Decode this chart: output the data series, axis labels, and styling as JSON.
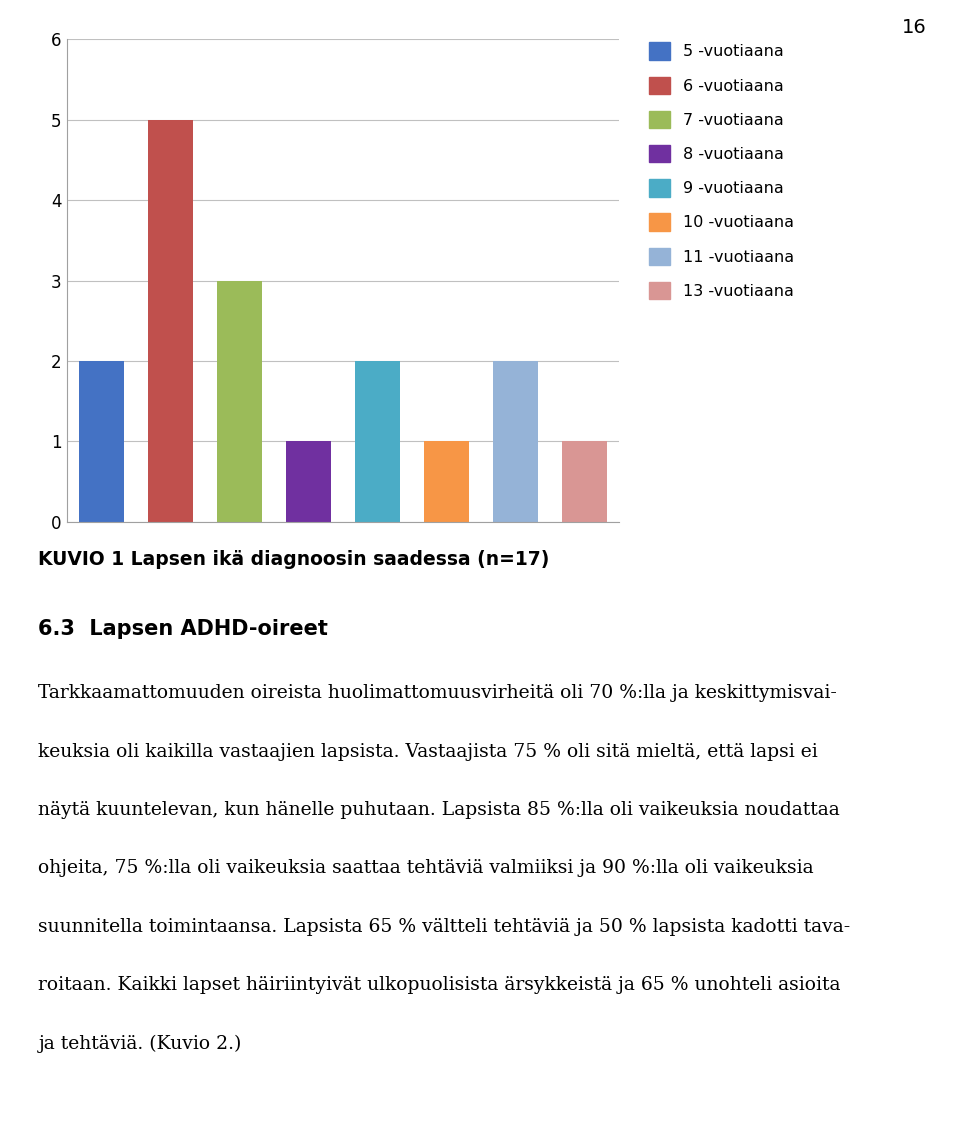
{
  "bars": [
    {
      "label": "5 -vuotiaana",
      "value": 2,
      "color": "#4472C4"
    },
    {
      "label": "6 -vuotiaana",
      "value": 5,
      "color": "#C0504D"
    },
    {
      "label": "7 -vuotiaana",
      "value": 3,
      "color": "#9BBB59"
    },
    {
      "label": "8 -vuotiaana",
      "value": 1,
      "color": "#7030A0"
    },
    {
      "label": "9 -vuotiaana",
      "value": 2,
      "color": "#4BACC6"
    },
    {
      "label": "10 -vuotiaana",
      "value": 1,
      "color": "#F79646"
    },
    {
      "label": "11 -vuotiaana",
      "value": 2,
      "color": "#95B3D7"
    },
    {
      "label": "13 -vuotiaana",
      "value": 1,
      "color": "#D99694"
    }
  ],
  "ylim": [
    0,
    6
  ],
  "yticks": [
    0,
    1,
    2,
    3,
    4,
    5,
    6
  ],
  "figure_number": "16",
  "chart_caption": "KUVIO 1 Lapsen ikä diagnoosin saadessa (n=17)",
  "section_heading": "6.3  Lapsen ADHD-oireet",
  "body_lines": [
    "Tarkkaamattomuuden oireista huolimattomuusvirheitä oli 70 %:lla ja keskittymisvai-",
    "keuksia oli kaikilla vastaajien lapsista. Vastaajista 75 % oli sitä mieltä, että lapsi ei",
    "näytä kuuntelevan, kun hänelle puhutaan. Lapsista 85 %:lla oli vaikeuksia noudattaa",
    "ohjeita, 75 %:lla oli vaikeuksia saattaa tehtäviä valmiiksi ja 90 %:lla oli vaikeuksia",
    "suunnitella toimintaansa. Lapsista 65 % vältteli tehtäviä ja 50 % lapsista kadotti tava-",
    "roitaan. Kaikki lapset häiriintyivät ulkopuolisista ärsykkeistä ja 65 % unohteli asioita",
    "ja tehtäviä. (Kuvio 2.)"
  ],
  "background_color": "#FFFFFF",
  "grid_color": "#C0C0C0",
  "bar_width": 0.65,
  "legend_fontsize": 11.5,
  "caption_fontsize": 13.5,
  "section_fontsize": 15,
  "body_fontsize": 13.5,
  "figure_number_fontsize": 14,
  "ytick_fontsize": 12
}
